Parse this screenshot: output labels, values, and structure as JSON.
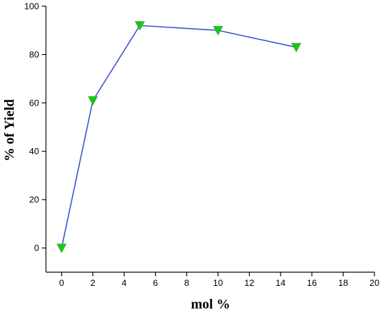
{
  "chart_data": {
    "type": "line",
    "xlabel": "mol %",
    "ylabel": "% of Yield",
    "xlim": [
      -1,
      20
    ],
    "ylim": [
      -10,
      100
    ],
    "xticks": [
      0,
      2,
      4,
      6,
      8,
      10,
      12,
      14,
      16,
      18,
      20
    ],
    "yticks": [
      0,
      20,
      40,
      60,
      80,
      100
    ],
    "grid": false,
    "series": [
      {
        "x": [
          0,
          2,
          5,
          10,
          15
        ],
        "y": [
          0,
          61,
          92,
          90,
          83
        ],
        "line_color": "#3a4fd8",
        "marker": "triangle-down",
        "marker_color": "#22c01f"
      }
    ]
  }
}
